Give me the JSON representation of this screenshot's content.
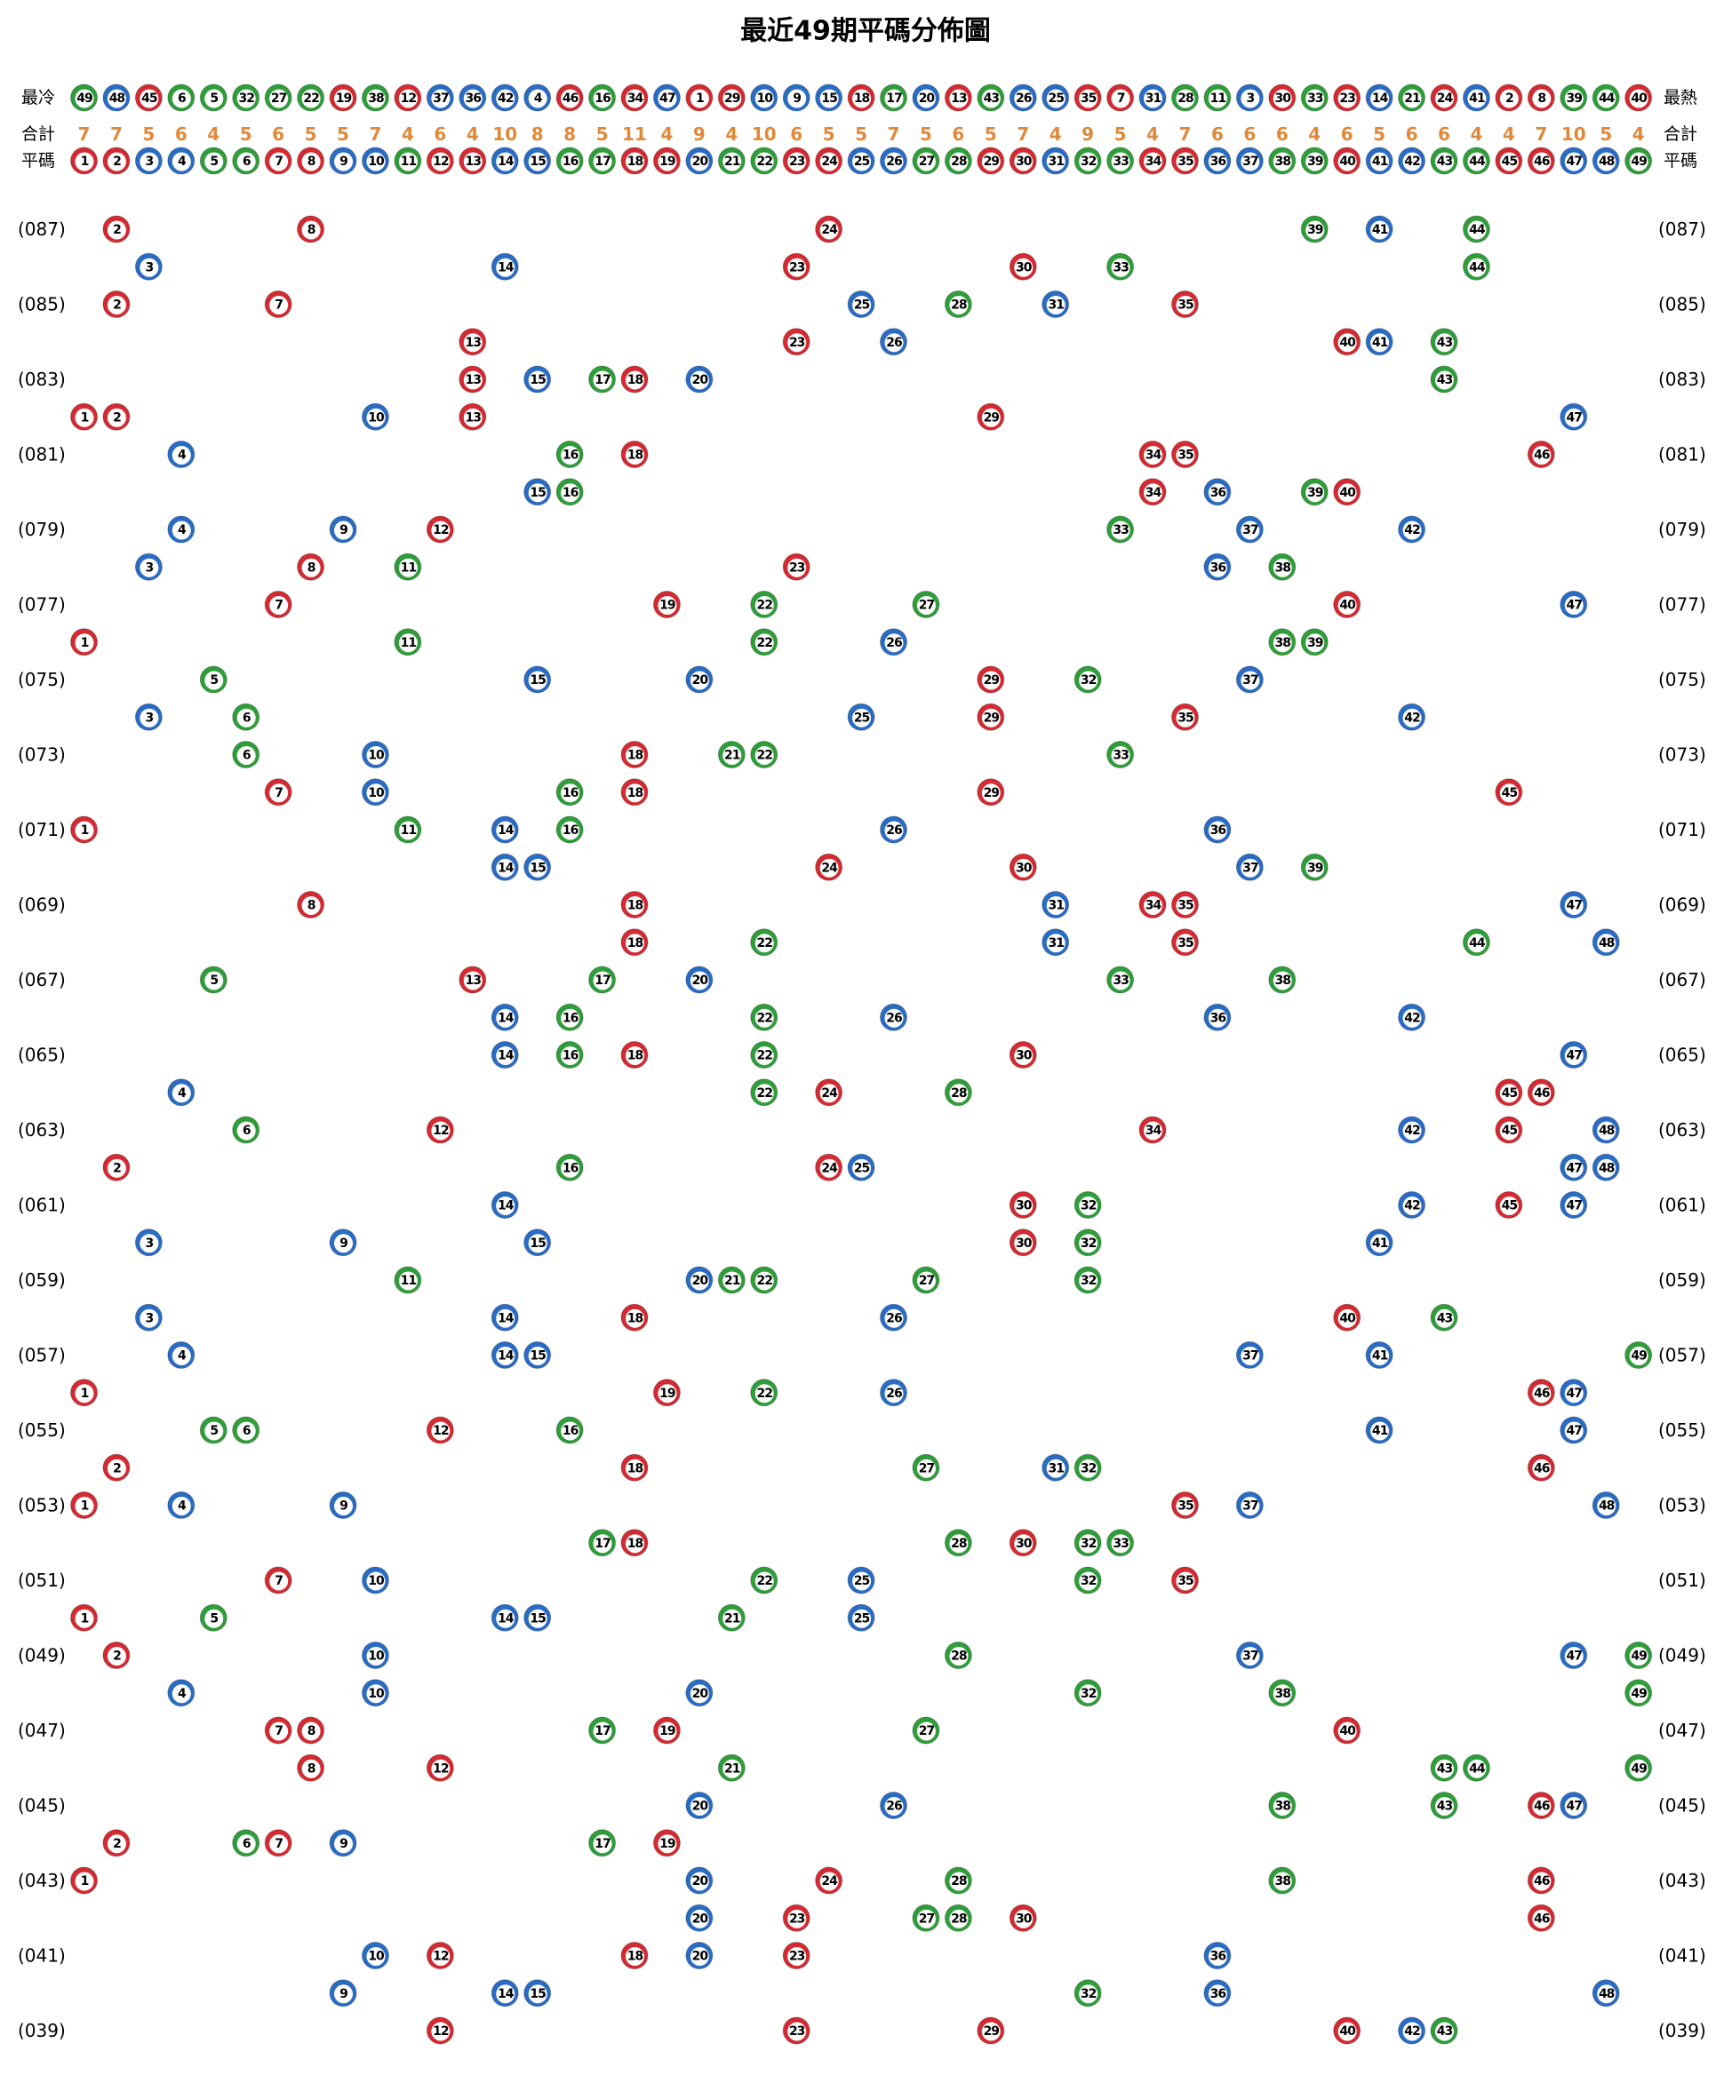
{
  "title": "最近49期平碼分佈圖",
  "cold_hot": {
    "left_label": "最冷",
    "right_label": "最熱",
    "numbers": [
      49,
      48,
      45,
      6,
      5,
      32,
      27,
      22,
      19,
      38,
      12,
      37,
      36,
      42,
      4,
      46,
      16,
      34,
      47,
      1,
      29,
      10,
      9,
      15,
      18,
      17,
      20,
      13,
      43,
      26,
      25,
      35,
      7,
      31,
      28,
      11,
      3,
      30,
      33,
      23,
      14,
      21,
      24,
      41,
      2,
      8,
      39,
      44,
      40
    ]
  },
  "totals": {
    "label": "合計",
    "values": [
      7,
      7,
      5,
      6,
      4,
      5,
      6,
      5,
      5,
      7,
      4,
      6,
      4,
      10,
      8,
      8,
      5,
      11,
      4,
      9,
      4,
      10,
      6,
      5,
      5,
      7,
      5,
      6,
      5,
      7,
      4,
      9,
      5,
      4,
      7,
      6,
      6,
      6,
      4,
      6,
      5,
      6,
      6,
      4,
      4,
      7,
      10,
      5,
      4
    ]
  },
  "header_numbers": {
    "label": "平碼",
    "numbers": [
      1,
      2,
      3,
      4,
      5,
      6,
      7,
      8,
      9,
      10,
      11,
      12,
      13,
      14,
      15,
      16,
      17,
      18,
      19,
      20,
      21,
      22,
      23,
      24,
      25,
      26,
      27,
      28,
      29,
      30,
      31,
      32,
      33,
      34,
      35,
      36,
      37,
      38,
      39,
      40,
      41,
      42,
      43,
      44,
      45,
      46,
      47,
      48,
      49
    ]
  },
  "number_colors": [
    "#d42a32",
    "#d42a32",
    "#2a6cc4",
    "#2a6cc4",
    "#2f9e3a",
    "#2f9e3a",
    "#d42a32",
    "#d42a32",
    "#2a6cc4",
    "#2a6cc4",
    "#2f9e3a",
    "#d42a32",
    "#d42a32",
    "#2a6cc4",
    "#2a6cc4",
    "#2f9e3a",
    "#2f9e3a",
    "#d42a32",
    "#d42a32",
    "#2a6cc4",
    "#2f9e3a",
    "#2f9e3a",
    "#d42a32",
    "#d42a32",
    "#2a6cc4",
    "#2a6cc4",
    "#2f9e3a",
    "#2f9e3a",
    "#d42a32",
    "#d42a32",
    "#2a6cc4",
    "#2f9e3a",
    "#2f9e3a",
    "#d42a32",
    "#d42a32",
    "#2a6cc4",
    "#2a6cc4",
    "#2f9e3a",
    "#2f9e3a",
    "#d42a32",
    "#2a6cc4",
    "#2a6cc4",
    "#2f9e3a",
    "#2f9e3a",
    "#d42a32",
    "#d42a32",
    "#2a6cc4",
    "#2a6cc4",
    "#2f9e3a"
  ],
  "draws": [
    {
      "period": "(087)",
      "numbers": [
        2,
        8,
        24,
        39,
        41,
        44
      ]
    },
    {
      "period": null,
      "numbers": [
        3,
        14,
        23,
        30,
        33,
        44
      ]
    },
    {
      "period": "(085)",
      "numbers": [
        2,
        7,
        25,
        28,
        31,
        35
      ]
    },
    {
      "period": null,
      "numbers": [
        13,
        23,
        26,
        40,
        41,
        43
      ]
    },
    {
      "period": "(083)",
      "numbers": [
        13,
        15,
        17,
        18,
        20,
        43
      ]
    },
    {
      "period": null,
      "numbers": [
        1,
        2,
        10,
        13,
        29,
        47
      ]
    },
    {
      "period": "(081)",
      "numbers": [
        4,
        16,
        18,
        34,
        35,
        46
      ]
    },
    {
      "period": null,
      "numbers": [
        15,
        16,
        34,
        36,
        39,
        40
      ]
    },
    {
      "period": "(079)",
      "numbers": [
        4,
        9,
        12,
        33,
        37,
        42
      ]
    },
    {
      "period": null,
      "numbers": [
        3,
        8,
        11,
        23,
        36,
        38
      ]
    },
    {
      "period": "(077)",
      "numbers": [
        7,
        19,
        22,
        27,
        40,
        47
      ]
    },
    {
      "period": null,
      "numbers": [
        1,
        11,
        22,
        26,
        38,
        39
      ]
    },
    {
      "period": "(075)",
      "numbers": [
        5,
        15,
        20,
        29,
        32,
        37
      ]
    },
    {
      "period": null,
      "numbers": [
        3,
        6,
        25,
        29,
        35,
        42
      ]
    },
    {
      "period": "(073)",
      "numbers": [
        6,
        10,
        18,
        21,
        22,
        33
      ]
    },
    {
      "period": null,
      "numbers": [
        7,
        10,
        16,
        18,
        29,
        45
      ]
    },
    {
      "period": "(071)",
      "numbers": [
        1,
        11,
        14,
        16,
        26,
        36
      ]
    },
    {
      "period": null,
      "numbers": [
        14,
        15,
        24,
        30,
        37,
        39
      ]
    },
    {
      "period": "(069)",
      "numbers": [
        8,
        18,
        31,
        34,
        35,
        47
      ]
    },
    {
      "period": null,
      "numbers": [
        18,
        22,
        31,
        35,
        44,
        48
      ]
    },
    {
      "period": "(067)",
      "numbers": [
        5,
        13,
        17,
        20,
        33,
        38
      ]
    },
    {
      "period": null,
      "numbers": [
        14,
        16,
        22,
        26,
        36,
        42
      ]
    },
    {
      "period": "(065)",
      "numbers": [
        14,
        16,
        18,
        22,
        30,
        47
      ]
    },
    {
      "period": null,
      "numbers": [
        4,
        22,
        24,
        28,
        45,
        46
      ]
    },
    {
      "period": "(063)",
      "numbers": [
        6,
        12,
        34,
        42,
        45,
        48
      ]
    },
    {
      "period": null,
      "numbers": [
        2,
        16,
        24,
        25,
        47,
        48
      ]
    },
    {
      "period": "(061)",
      "numbers": [
        14,
        30,
        32,
        42,
        45,
        47
      ]
    },
    {
      "period": null,
      "numbers": [
        3,
        9,
        15,
        30,
        32,
        41
      ]
    },
    {
      "period": "(059)",
      "numbers": [
        11,
        20,
        21,
        22,
        27,
        32
      ]
    },
    {
      "period": null,
      "numbers": [
        3,
        14,
        18,
        26,
        40,
        43
      ]
    },
    {
      "period": "(057)",
      "numbers": [
        4,
        14,
        15,
        37,
        41,
        49
      ]
    },
    {
      "period": null,
      "numbers": [
        1,
        19,
        22,
        26,
        46,
        47
      ]
    },
    {
      "period": "(055)",
      "numbers": [
        5,
        6,
        12,
        16,
        41,
        47
      ]
    },
    {
      "period": null,
      "numbers": [
        2,
        18,
        27,
        31,
        32,
        46
      ]
    },
    {
      "period": "(053)",
      "numbers": [
        1,
        4,
        9,
        35,
        37,
        48
      ]
    },
    {
      "period": null,
      "numbers": [
        17,
        18,
        28,
        30,
        32,
        33
      ]
    },
    {
      "period": "(051)",
      "numbers": [
        7,
        10,
        22,
        25,
        32,
        35
      ]
    },
    {
      "period": null,
      "numbers": [
        1,
        5,
        14,
        15,
        21,
        25
      ]
    },
    {
      "period": "(049)",
      "numbers": [
        2,
        10,
        28,
        37,
        47,
        49
      ]
    },
    {
      "period": null,
      "numbers": [
        4,
        10,
        20,
        32,
        38,
        49
      ]
    },
    {
      "period": "(047)",
      "numbers": [
        7,
        8,
        17,
        19,
        27,
        40
      ]
    },
    {
      "period": null,
      "numbers": [
        8,
        12,
        21,
        43,
        44,
        49
      ]
    },
    {
      "period": "(045)",
      "numbers": [
        20,
        26,
        38,
        43,
        46,
        47
      ]
    },
    {
      "period": null,
      "numbers": [
        2,
        6,
        7,
        9,
        17,
        19
      ]
    },
    {
      "period": "(043)",
      "numbers": [
        1,
        20,
        24,
        28,
        38,
        46
      ]
    },
    {
      "period": null,
      "numbers": [
        20,
        23,
        27,
        28,
        30,
        46
      ]
    },
    {
      "period": "(041)",
      "numbers": [
        10,
        12,
        18,
        20,
        23,
        36
      ]
    },
    {
      "period": null,
      "numbers": [
        9,
        14,
        15,
        32,
        36,
        48
      ]
    },
    {
      "period": "(039)",
      "numbers": [
        12,
        23,
        29,
        40,
        42,
        43
      ]
    }
  ]
}
